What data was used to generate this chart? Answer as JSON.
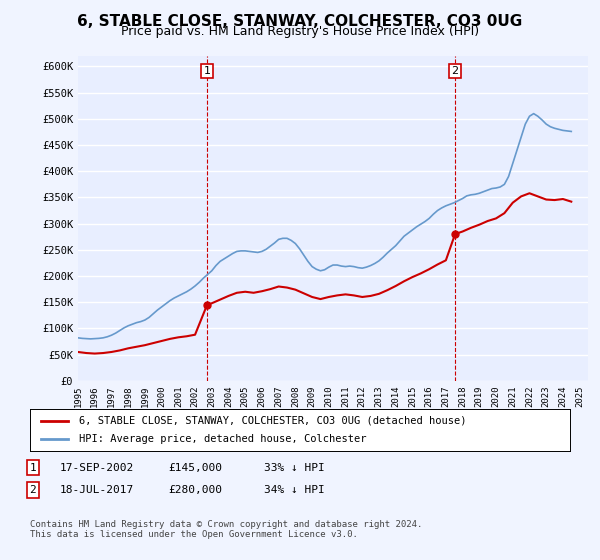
{
  "title": "6, STABLE CLOSE, STANWAY, COLCHESTER, CO3 0UG",
  "subtitle": "Price paid vs. HM Land Registry's House Price Index (HPI)",
  "title_fontsize": 11,
  "subtitle_fontsize": 9,
  "ylabel_ticks": [
    "£0",
    "£50K",
    "£100K",
    "£150K",
    "£200K",
    "£250K",
    "£300K",
    "£350K",
    "£400K",
    "£450K",
    "£500K",
    "£550K",
    "£600K"
  ],
  "ytick_values": [
    0,
    50000,
    100000,
    150000,
    200000,
    250000,
    300000,
    350000,
    400000,
    450000,
    500000,
    550000,
    600000
  ],
  "ylim": [
    0,
    620000
  ],
  "xlim_start": 1995.0,
  "xlim_end": 2025.5,
  "background_color": "#f0f4ff",
  "plot_background": "#e8eeff",
  "grid_color": "#ffffff",
  "red_line_color": "#cc0000",
  "blue_line_color": "#6699cc",
  "marker1_date": 2002.72,
  "marker1_value": 145000,
  "marker2_date": 2017.55,
  "marker2_value": 280000,
  "legend_label_red": "6, STABLE CLOSE, STANWAY, COLCHESTER, CO3 0UG (detached house)",
  "legend_label_blue": "HPI: Average price, detached house, Colchester",
  "table_rows": [
    {
      "num": "1",
      "date": "17-SEP-2002",
      "price": "£145,000",
      "change": "33% ↓ HPI"
    },
    {
      "num": "2",
      "date": "18-JUL-2017",
      "price": "£280,000",
      "change": "34% ↓ HPI"
    }
  ],
  "footer": "Contains HM Land Registry data © Crown copyright and database right 2024.\nThis data is licensed under the Open Government Licence v3.0.",
  "hpi_years": [
    1995.0,
    1995.25,
    1995.5,
    1995.75,
    1996.0,
    1996.25,
    1996.5,
    1996.75,
    1997.0,
    1997.25,
    1997.5,
    1997.75,
    1998.0,
    1998.25,
    1998.5,
    1998.75,
    1999.0,
    1999.25,
    1999.5,
    1999.75,
    2000.0,
    2000.25,
    2000.5,
    2000.75,
    2001.0,
    2001.25,
    2001.5,
    2001.75,
    2002.0,
    2002.25,
    2002.5,
    2002.75,
    2003.0,
    2003.25,
    2003.5,
    2003.75,
    2004.0,
    2004.25,
    2004.5,
    2004.75,
    2005.0,
    2005.25,
    2005.5,
    2005.75,
    2006.0,
    2006.25,
    2006.5,
    2006.75,
    2007.0,
    2007.25,
    2007.5,
    2007.75,
    2008.0,
    2008.25,
    2008.5,
    2008.75,
    2009.0,
    2009.25,
    2009.5,
    2009.75,
    2010.0,
    2010.25,
    2010.5,
    2010.75,
    2011.0,
    2011.25,
    2011.5,
    2011.75,
    2012.0,
    2012.25,
    2012.5,
    2012.75,
    2013.0,
    2013.25,
    2013.5,
    2013.75,
    2014.0,
    2014.25,
    2014.5,
    2014.75,
    2015.0,
    2015.25,
    2015.5,
    2015.75,
    2016.0,
    2016.25,
    2016.5,
    2016.75,
    2017.0,
    2017.25,
    2017.5,
    2017.75,
    2018.0,
    2018.25,
    2018.5,
    2018.75,
    2019.0,
    2019.25,
    2019.5,
    2019.75,
    2020.0,
    2020.25,
    2020.5,
    2020.75,
    2021.0,
    2021.25,
    2021.5,
    2021.75,
    2022.0,
    2022.25,
    2022.5,
    2022.75,
    2023.0,
    2023.25,
    2023.5,
    2023.75,
    2024.0,
    2024.25,
    2024.5
  ],
  "hpi_values": [
    82000,
    81000,
    80500,
    80000,
    80500,
    81000,
    82000,
    84000,
    87000,
    91000,
    96000,
    101000,
    105000,
    108000,
    111000,
    113000,
    116000,
    121000,
    128000,
    135000,
    141000,
    147000,
    153000,
    158000,
    162000,
    166000,
    170000,
    175000,
    181000,
    188000,
    196000,
    203000,
    210000,
    220000,
    228000,
    233000,
    238000,
    243000,
    247000,
    248000,
    248000,
    247000,
    246000,
    245000,
    247000,
    251000,
    257000,
    263000,
    270000,
    272000,
    272000,
    268000,
    262000,
    252000,
    240000,
    228000,
    218000,
    213000,
    210000,
    212000,
    217000,
    221000,
    221000,
    219000,
    218000,
    219000,
    218000,
    216000,
    215000,
    217000,
    220000,
    224000,
    229000,
    236000,
    244000,
    251000,
    258000,
    267000,
    276000,
    282000,
    288000,
    294000,
    299000,
    304000,
    310000,
    318000,
    325000,
    330000,
    334000,
    337000,
    340000,
    344000,
    348000,
    353000,
    355000,
    356000,
    358000,
    361000,
    364000,
    367000,
    368000,
    370000,
    375000,
    390000,
    415000,
    440000,
    465000,
    490000,
    505000,
    510000,
    505000,
    498000,
    490000,
    485000,
    482000,
    480000,
    478000,
    477000,
    476000
  ],
  "red_years": [
    1995.0,
    1995.5,
    1996.0,
    1996.5,
    1997.0,
    1997.5,
    1998.0,
    1998.5,
    1999.0,
    1999.5,
    2000.0,
    2000.5,
    2001.0,
    2001.5,
    2002.0,
    2002.72,
    2003.0,
    2003.5,
    2004.0,
    2004.5,
    2005.0,
    2005.5,
    2006.0,
    2006.5,
    2007.0,
    2007.5,
    2008.0,
    2008.5,
    2009.0,
    2009.5,
    2010.0,
    2010.5,
    2011.0,
    2011.5,
    2012.0,
    2012.5,
    2013.0,
    2013.5,
    2014.0,
    2014.5,
    2015.0,
    2015.5,
    2016.0,
    2016.5,
    2017.0,
    2017.55,
    2018.0,
    2018.5,
    2019.0,
    2019.5,
    2020.0,
    2020.5,
    2021.0,
    2021.5,
    2022.0,
    2022.5,
    2023.0,
    2023.5,
    2024.0,
    2024.5
  ],
  "red_values": [
    55000,
    53000,
    52000,
    53000,
    55000,
    58000,
    62000,
    65000,
    68000,
    72000,
    76000,
    80000,
    83000,
    85000,
    88000,
    145000,
    148000,
    155000,
    162000,
    168000,
    170000,
    168000,
    171000,
    175000,
    180000,
    178000,
    174000,
    167000,
    160000,
    156000,
    160000,
    163000,
    165000,
    163000,
    160000,
    162000,
    166000,
    173000,
    181000,
    190000,
    198000,
    205000,
    213000,
    222000,
    230000,
    280000,
    285000,
    292000,
    298000,
    305000,
    310000,
    320000,
    340000,
    352000,
    358000,
    352000,
    346000,
    345000,
    347000,
    342000
  ]
}
